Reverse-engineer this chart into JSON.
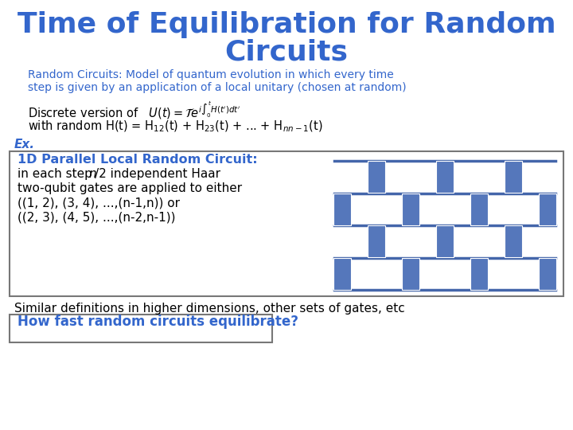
{
  "title_line1": "Time of Equilibration for Random",
  "title_line2": "Circuits",
  "title_color": "#3366CC",
  "black_color": "#000000",
  "background_color": "#FFFFFF",
  "line1": "Random Circuits: Model of quantum evolution in which every time",
  "line2": "step is given by an application of a local unitary (chosen at random)",
  "ex_label": "Ex.",
  "box_title": "1D Parallel Local Random Circuit:",
  "similar_text": "Similar definitions in higher dimensions, other sets of gates, etc",
  "bottom_box_text": "How fast random circuits equilibrate?",
  "wire_color": "#4466AA",
  "gate_color": "#5577BB",
  "diagram_bg": "#8899BB"
}
